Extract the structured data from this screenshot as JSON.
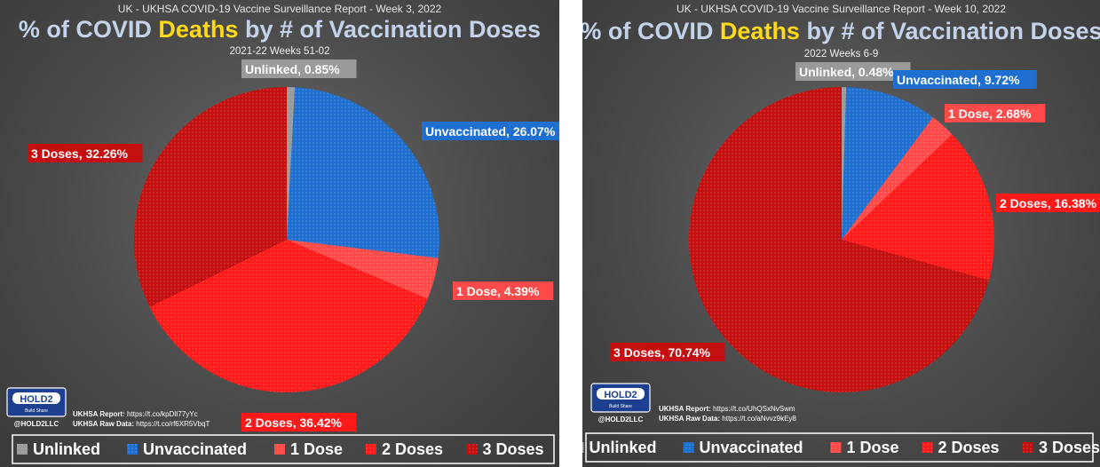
{
  "colors": {
    "unlinked": "#9a9a9a",
    "unvaccinated": "#1f6fd1",
    "dose1": "#ff4a4a",
    "dose2": "#ff1a1a",
    "dose3": "#c40f0f",
    "title_highlight": "#ffd91a",
    "title": "#c5d3ea"
  },
  "legend": {
    "items": [
      {
        "key": "unlinked",
        "label": "Unlinked"
      },
      {
        "key": "unvaccinated",
        "label": "Unvaccinated"
      },
      {
        "key": "dose1",
        "label": "1 Dose"
      },
      {
        "key": "dose2",
        "label": "2 Doses"
      },
      {
        "key": "dose3",
        "label": "3 Doses"
      }
    ]
  },
  "logo": {
    "text": "HOLD2",
    "tagline": "Build Share",
    "handle": "@HOLD2LLC"
  },
  "chart_data": [
    {
      "type": "pie",
      "report_title": "UK - UKHSA COVID-19 Vaccine Surveillance Report - Week 3, 2022",
      "title_pre": "% of COVID ",
      "title_highlight": "Deaths",
      "title_post": " by # of Vaccination Doses",
      "subtitle": "2021-22 Weeks 51-02",
      "slices": [
        {
          "key": "unlinked",
          "name": "Unlinked",
          "value": 0.85,
          "label": "Unlinked, 0.85%"
        },
        {
          "key": "unvaccinated",
          "name": "Unvaccinated",
          "value": 26.07,
          "label": "Unvaccinated, 26.07%"
        },
        {
          "key": "dose1",
          "name": "1 Dose",
          "value": 4.39,
          "label": "1 Dose, 4.39%"
        },
        {
          "key": "dose2",
          "name": "2 Doses",
          "value": 36.42,
          "label": "2 Doses, 36.42%"
        },
        {
          "key": "dose3",
          "name": "3 Doses",
          "value": 32.26,
          "label": "3 Doses, 32.26%"
        }
      ],
      "source_report_label": "UKHSA Report:",
      "source_report": "https://t.co/kpDlI77yYc",
      "source_raw_label": "UKHSA Raw Data:",
      "source_raw": "https://t.co/rf6XR5VbqT"
    },
    {
      "type": "pie",
      "report_title": "UK - UKHSA COVID-19 Vaccine Surveillance Report - Week 10, 2022",
      "title_pre": "% of COVID ",
      "title_highlight": "Deaths",
      "title_post": " by # of Vaccination Doses",
      "subtitle": "2022 Weeks 6-9",
      "slices": [
        {
          "key": "unlinked",
          "name": "Unlinked",
          "value": 0.48,
          "label": "Unlinked, 0.48%"
        },
        {
          "key": "unvaccinated",
          "name": "Unvaccinated",
          "value": 9.72,
          "label": "Unvaccinated, 9.72%"
        },
        {
          "key": "dose1",
          "name": "1 Dose",
          "value": 2.68,
          "label": "1 Dose, 2.68%"
        },
        {
          "key": "dose2",
          "name": "2 Doses",
          "value": 16.38,
          "label": "2 Doses, 16.38%"
        },
        {
          "key": "dose3",
          "name": "3 Doses",
          "value": 70.74,
          "label": "3 Doses, 70.74%"
        }
      ],
      "source_report_label": "UKHSA Report:",
      "source_report": "https://t.co/UhQSxNvSwm",
      "source_raw_label": "UKHSA Raw Data:",
      "source_raw": "https://t.co/aNvvz9kEy8"
    }
  ]
}
